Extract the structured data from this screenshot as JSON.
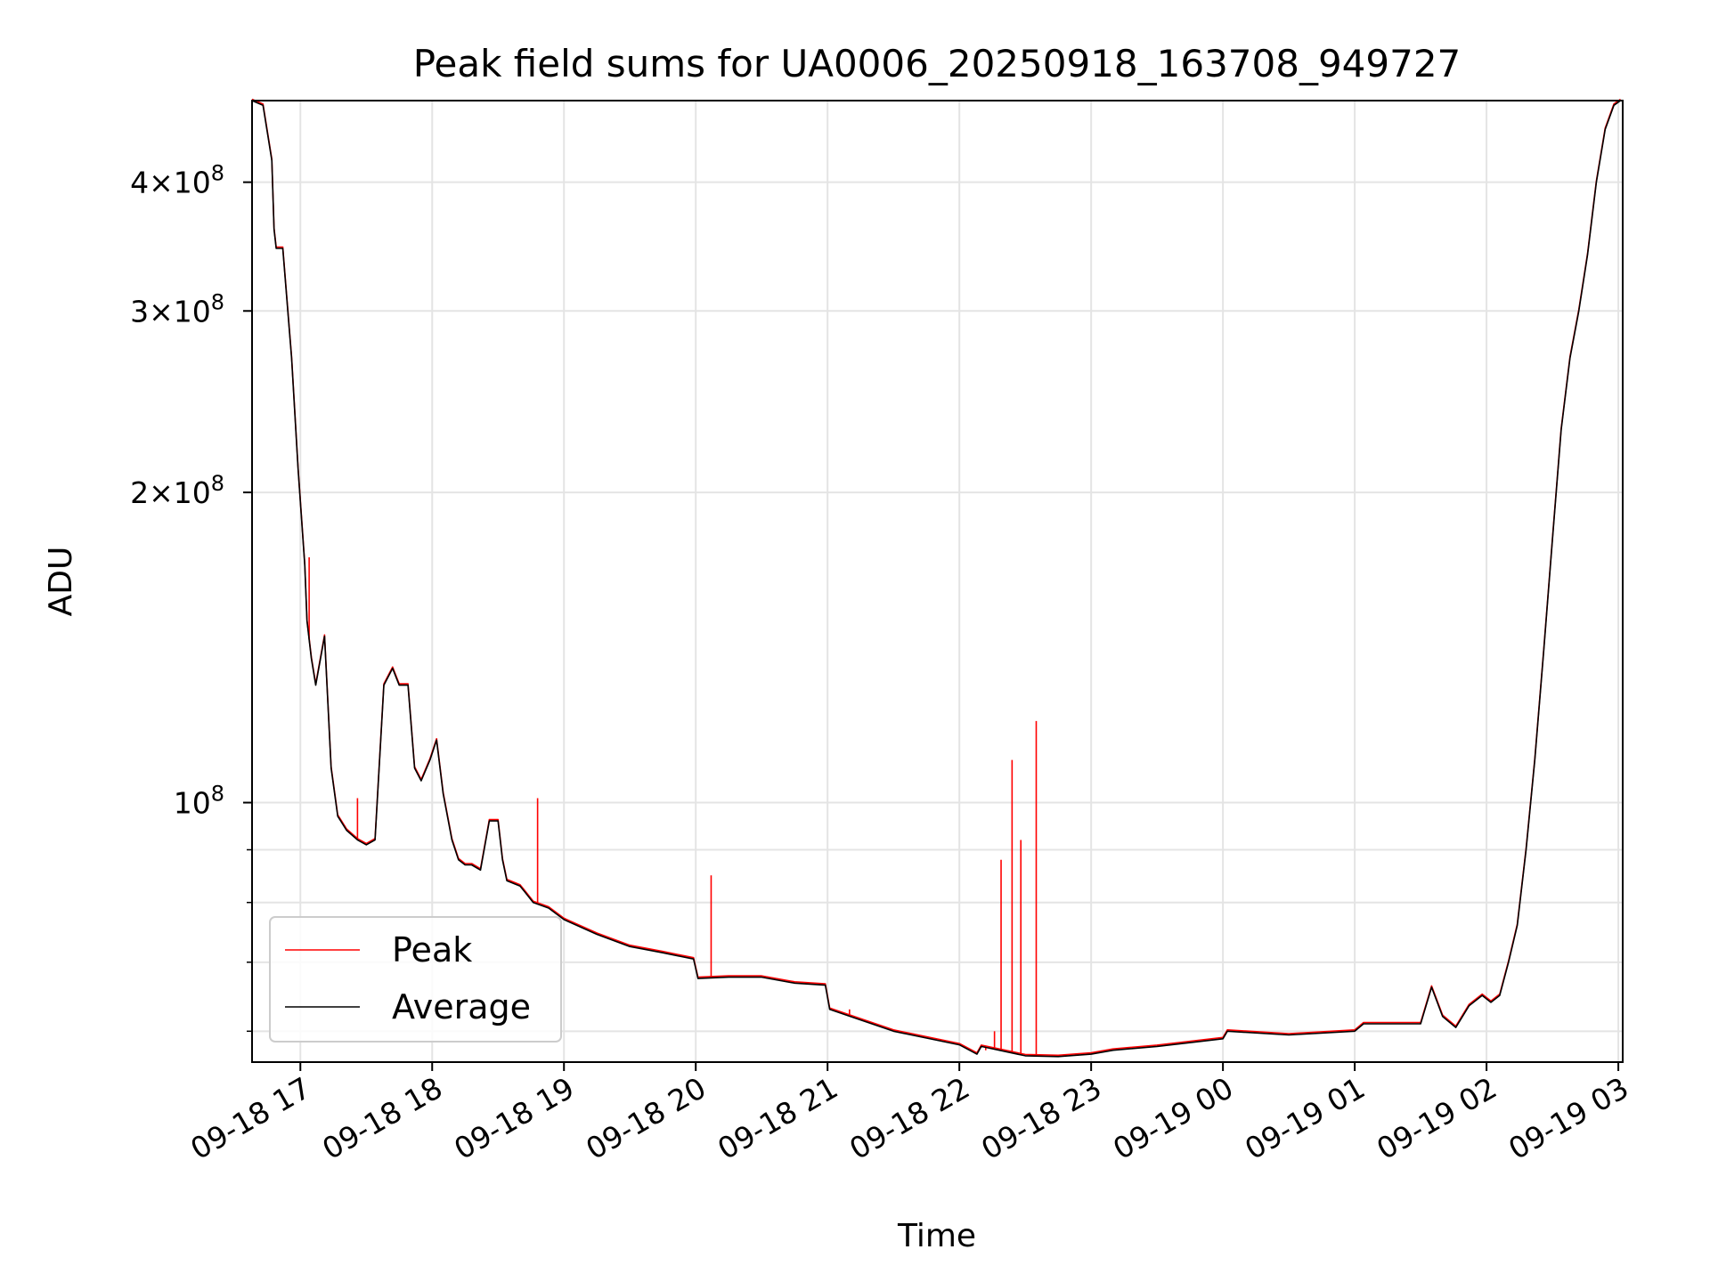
{
  "chart_data": {
    "type": "line",
    "title": "Peak field sums for UA0006_20250918_163708_949727",
    "xlabel": "Time",
    "ylabel": "ADU",
    "x_axis": {
      "type": "date",
      "range": [
        "2025-09-18 16:38",
        "2025-09-19 03:02"
      ],
      "tick_values": [
        "2025-09-18 17:00",
        "2025-09-18 18:00",
        "2025-09-18 19:00",
        "2025-09-18 20:00",
        "2025-09-18 21:00",
        "2025-09-18 22:00",
        "2025-09-18 23:00",
        "2025-09-19 00:00",
        "2025-09-19 01:00",
        "2025-09-19 02:00",
        "2025-09-19 03:00"
      ],
      "tick_labels": [
        "09-18 17",
        "09-18 18",
        "09-18 19",
        "09-18 20",
        "09-18 21",
        "09-18 22",
        "09-18 23",
        "09-19 00",
        "09-19 01",
        "09-19 02",
        "09-19 03"
      ]
    },
    "y_axis": {
      "scale": "log",
      "range": [
        56000000,
        480000000
      ],
      "major_ticks": [
        {
          "value": 100000000,
          "label": "10",
          "exponent": "8"
        },
        {
          "value": 200000000,
          "label": "2×10",
          "exponent": "8"
        },
        {
          "value": 300000000,
          "label": "3×10",
          "exponent": "8"
        },
        {
          "value": 400000000,
          "label": "4×10",
          "exponent": "8"
        }
      ],
      "minor_ticks": [
        60000000,
        70000000,
        80000000,
        90000000
      ]
    },
    "grid": true,
    "legend": {
      "placement": "lower-left",
      "entries": [
        "Peak",
        "Average"
      ]
    },
    "series": [
      {
        "name": "Average",
        "color": "#000000",
        "x": [
          "2025-09-18 16:38",
          "2025-09-18 16:43",
          "2025-09-18 16:47",
          "2025-09-18 16:48",
          "2025-09-18 16:49",
          "2025-09-18 16:52",
          "2025-09-18 16:56",
          "2025-09-18 16:59",
          "2025-09-18 17:02",
          "2025-09-18 17:03",
          "2025-09-18 17:05",
          "2025-09-18 17:07",
          "2025-09-18 17:11",
          "2025-09-18 17:14",
          "2025-09-18 17:17",
          "2025-09-18 17:21",
          "2025-09-18 17:26",
          "2025-09-18 17:30",
          "2025-09-18 17:34",
          "2025-09-18 17:38",
          "2025-09-18 17:42",
          "2025-09-18 17:45",
          "2025-09-18 17:49",
          "2025-09-18 17:52",
          "2025-09-18 17:55",
          "2025-09-18 17:59",
          "2025-09-18 18:02",
          "2025-09-18 18:05",
          "2025-09-18 18:09",
          "2025-09-18 18:12",
          "2025-09-18 18:15",
          "2025-09-18 18:18",
          "2025-09-18 18:22",
          "2025-09-18 18:26",
          "2025-09-18 18:30",
          "2025-09-18 18:32",
          "2025-09-18 18:34",
          "2025-09-18 18:40",
          "2025-09-18 18:42",
          "2025-09-18 18:46",
          "2025-09-18 18:53",
          "2025-09-18 19:00",
          "2025-09-18 19:15",
          "2025-09-18 19:30",
          "2025-09-18 19:45",
          "2025-09-18 19:59",
          "2025-09-18 20:01",
          "2025-09-18 20:15",
          "2025-09-18 20:30",
          "2025-09-18 20:45",
          "2025-09-18 20:59",
          "2025-09-18 21:01",
          "2025-09-18 21:30",
          "2025-09-18 22:00",
          "2025-09-18 22:08",
          "2025-09-18 22:10",
          "2025-09-18 22:30",
          "2025-09-18 22:45",
          "2025-09-18 23:00",
          "2025-09-18 23:10",
          "2025-09-18 23:30",
          "2025-09-19 00:00",
          "2025-09-19 00:02",
          "2025-09-19 00:30",
          "2025-09-19 01:00",
          "2025-09-19 01:04",
          "2025-09-19 01:30",
          "2025-09-19 01:35",
          "2025-09-19 01:40",
          "2025-09-19 01:46",
          "2025-09-19 01:52",
          "2025-09-19 01:58",
          "2025-09-19 02:02",
          "2025-09-19 02:06",
          "2025-09-19 02:10",
          "2025-09-19 02:14",
          "2025-09-19 02:18",
          "2025-09-19 02:22",
          "2025-09-19 02:26",
          "2025-09-19 02:30",
          "2025-09-19 02:34",
          "2025-09-19 02:38",
          "2025-09-19 02:42",
          "2025-09-19 02:46",
          "2025-09-19 02:50",
          "2025-09-19 02:54",
          "2025-09-19 02:58",
          "2025-09-19 03:01"
        ],
        "values": [
          480000000,
          475000000,
          420000000,
          360000000,
          345000000,
          345000000,
          270000000,
          210000000,
          170000000,
          150000000,
          138000000,
          130000000,
          145000000,
          108000000,
          97000000,
          94000000,
          92000000,
          91000000,
          92000000,
          130000000,
          135000000,
          130000000,
          130000000,
          108000000,
          105000000,
          110000000,
          115000000,
          102000000,
          92000000,
          88000000,
          87000000,
          87000000,
          86000000,
          96000000,
          96000000,
          88000000,
          84000000,
          83000000,
          82000000,
          80000000,
          79000000,
          77000000,
          74500000,
          72500000,
          71500000,
          70500000,
          67500000,
          67700000,
          67700000,
          66800000,
          66500000,
          63000000,
          60000000,
          58200000,
          57000000,
          58000000,
          56800000,
          56700000,
          57000000,
          57500000,
          58000000,
          59000000,
          60000000,
          59500000,
          60000000,
          61000000,
          61000000,
          66200000,
          62000000,
          60500000,
          63500000,
          65000000,
          64000000,
          65000000,
          70000000,
          76000000,
          90000000,
          110000000,
          140000000,
          180000000,
          230000000,
          270000000,
          300000000,
          340000000,
          400000000,
          450000000,
          475000000,
          480000000
        ]
      },
      {
        "name": "Peak",
        "color": "#ff0000",
        "x": [
          "2025-09-18 17:04",
          "2025-09-18 17:26",
          "2025-09-18 18:48",
          "2025-09-18 20:07",
          "2025-09-18 21:10",
          "2025-09-18 22:12",
          "2025-09-18 22:16",
          "2025-09-18 22:19",
          "2025-09-18 22:24",
          "2025-09-18 22:28",
          "2025-09-18 22:35"
        ],
        "values": [
          173000000,
          101000000,
          101000000,
          85000000,
          63000000,
          57500000,
          60000000,
          88000000,
          110000000,
          92000000,
          120000000
        ]
      }
    ]
  }
}
